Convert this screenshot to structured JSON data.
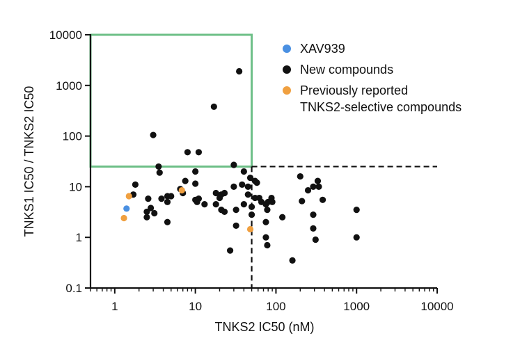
{
  "chart_data": {
    "type": "scatter",
    "title": "",
    "xlabel": "TNKS2 IC50 (nM)",
    "ylabel": "TNKS1 IC50 / TNKS2 IC50",
    "x_scale": "log",
    "y_scale": "log",
    "xlim": [
      0.5,
      10000
    ],
    "ylim": [
      0.1,
      10000
    ],
    "x_ticks": [
      "1",
      "10",
      "100",
      "1000",
      "10000"
    ],
    "y_ticks": [
      "0.1",
      "1",
      "10",
      "100",
      "1000",
      "10000"
    ],
    "grid": false,
    "legend_position": "top-right",
    "colors": {
      "xav939": "#4a90e2",
      "new_compounds": "#111111",
      "previous": "#f0a040",
      "highlight_box": "#6dbf87",
      "threshold_line": "#111111"
    },
    "thresholds": {
      "x": 50,
      "y": 25
    },
    "highlight_region": {
      "x": [
        0.5,
        50
      ],
      "y": [
        25,
        10000
      ]
    },
    "series": [
      {
        "name": "XAV939",
        "legend_label": "XAV939",
        "color": "#4a90e2",
        "points": [
          [
            1.4,
            3.7
          ]
        ]
      },
      {
        "name": "New compounds",
        "legend_label": "New compounds",
        "color": "#111111",
        "points": [
          [
            35,
            1900
          ],
          [
            17,
            380
          ],
          [
            3,
            105
          ],
          [
            8,
            48
          ],
          [
            11,
            48
          ],
          [
            30,
            27
          ],
          [
            3.5,
            25
          ],
          [
            10,
            20
          ],
          [
            3.6,
            19
          ],
          [
            40,
            20
          ],
          [
            48,
            15
          ],
          [
            55,
            13
          ],
          [
            58,
            12
          ],
          [
            45,
            10
          ],
          [
            1.8,
            11
          ],
          [
            7.5,
            13
          ],
          [
            10,
            11.5
          ],
          [
            30,
            10
          ],
          [
            38,
            11
          ],
          [
            200,
            16
          ],
          [
            330,
            13
          ],
          [
            340,
            10
          ],
          [
            290,
            10
          ],
          [
            250,
            8.5
          ],
          [
            210,
            5.2
          ],
          [
            380,
            5.5
          ],
          [
            6.5,
            9
          ],
          [
            7,
            7.5
          ],
          [
            1.7,
            7
          ],
          [
            4.5,
            6.5
          ],
          [
            5,
            6.5
          ],
          [
            3.8,
            5.8
          ],
          [
            2.6,
            5.8
          ],
          [
            10,
            5.5
          ],
          [
            11,
            5.8
          ],
          [
            13,
            4.5
          ],
          [
            10.5,
            5
          ],
          [
            4.5,
            5
          ],
          [
            2.8,
            3.8
          ],
          [
            2.5,
            3.2
          ],
          [
            3.1,
            3
          ],
          [
            2.5,
            2.5
          ],
          [
            4.5,
            2
          ],
          [
            18,
            7.5
          ],
          [
            20,
            6
          ],
          [
            21,
            7
          ],
          [
            23,
            7.5
          ],
          [
            18,
            4.5
          ],
          [
            21,
            3.5
          ],
          [
            23,
            3.2
          ],
          [
            32,
            3.5
          ],
          [
            40,
            4.5
          ],
          [
            45,
            7
          ],
          [
            50,
            4
          ],
          [
            55,
            6
          ],
          [
            62,
            6
          ],
          [
            66,
            5
          ],
          [
            75,
            4.5
          ],
          [
            78,
            3.5
          ],
          [
            80,
            5
          ],
          [
            88,
            6
          ],
          [
            90,
            5
          ],
          [
            75,
            2
          ],
          [
            120,
            2.5
          ],
          [
            50,
            2.8
          ],
          [
            32,
            1.7
          ],
          [
            75,
            1
          ],
          [
            78,
            0.7
          ],
          [
            27,
            0.55
          ],
          [
            160,
            0.35
          ],
          [
            290,
            2.8
          ],
          [
            290,
            1.5
          ],
          [
            310,
            0.9
          ],
          [
            1000,
            3.5
          ],
          [
            1000,
            1
          ]
        ]
      },
      {
        "name": "Previously reported TNKS2-selective compounds",
        "legend_label": [
          "Previously reported",
          "TNKS2-selective compounds"
        ],
        "color": "#f0a040",
        "points": [
          [
            1.5,
            6.5
          ],
          [
            6.8,
            8.5
          ],
          [
            1.3,
            2.4
          ],
          [
            48,
            1.45
          ]
        ]
      }
    ]
  }
}
